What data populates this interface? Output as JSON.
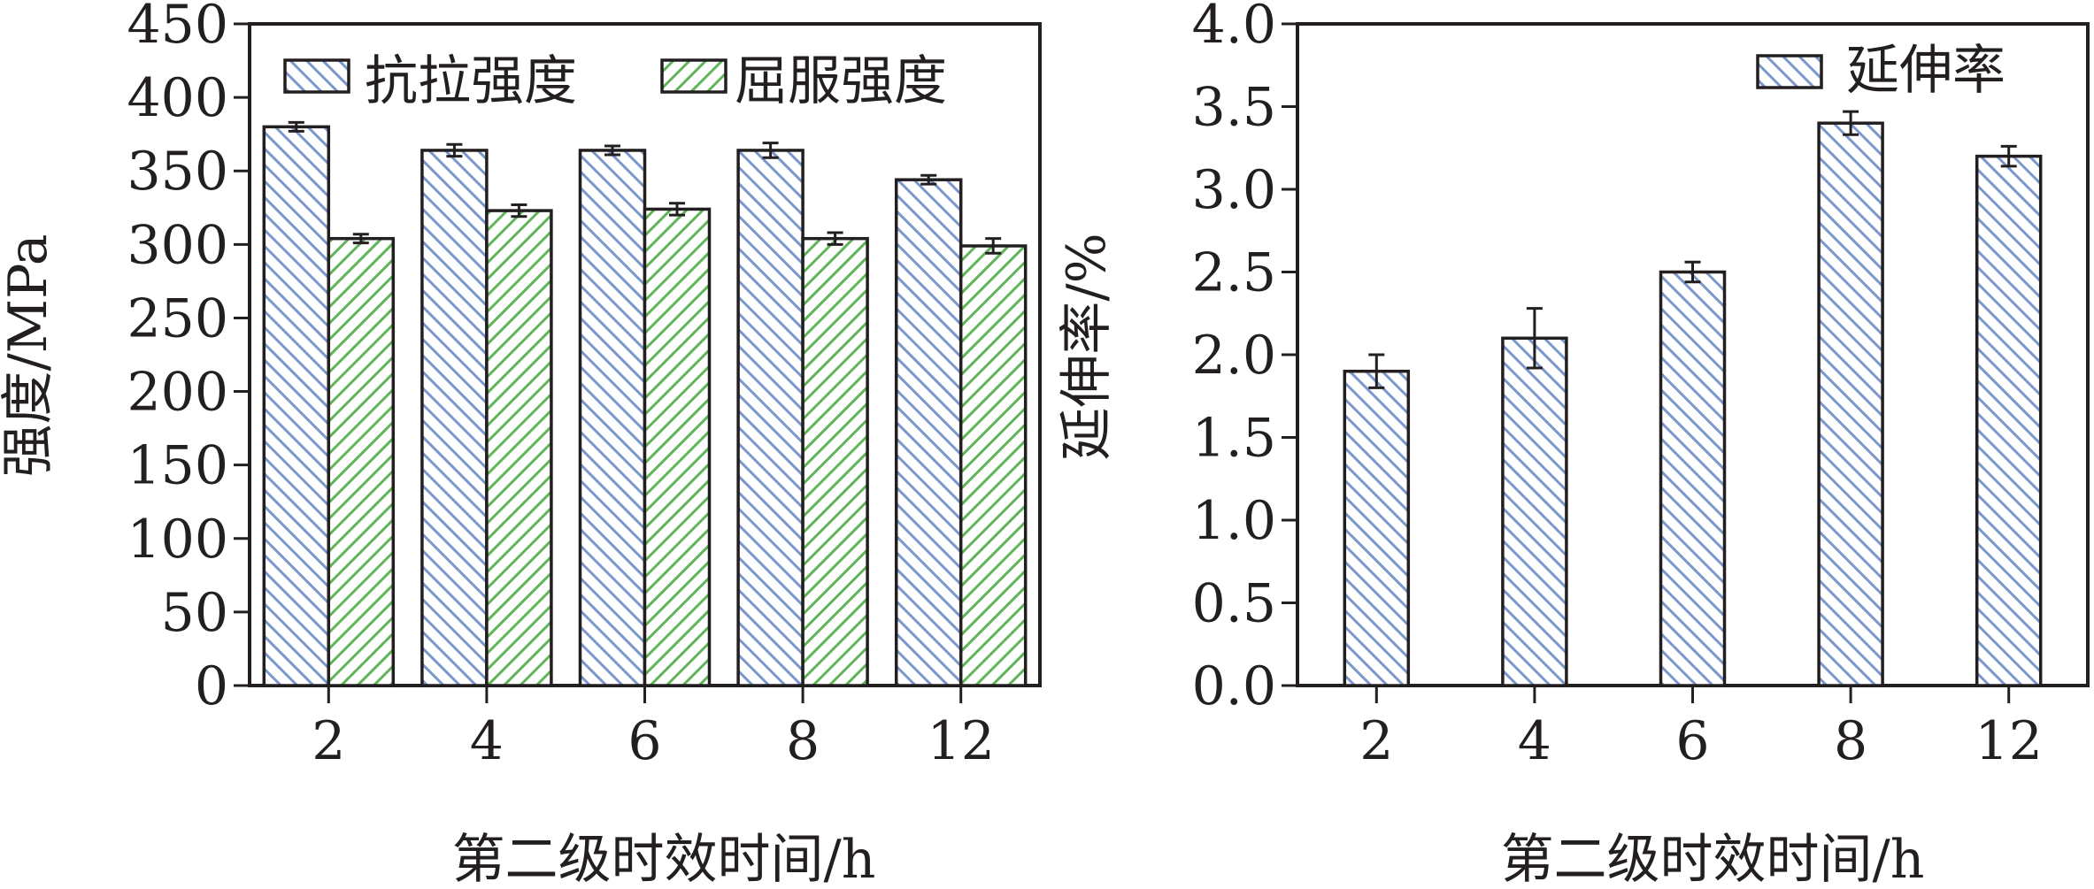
{
  "chart_data": [
    {
      "type": "bar",
      "xlabel": "第二级时效时间/h",
      "ylabel": "强度/MPa",
      "categories": [
        "2",
        "4",
        "6",
        "8",
        "12"
      ],
      "ylim": [
        0,
        450
      ],
      "yticks": [
        "0",
        "50",
        "100",
        "150",
        "200",
        "250",
        "300",
        "350",
        "400",
        "450"
      ],
      "legend_position": "top",
      "series": [
        {
          "name": "抗拉强度",
          "values": [
            380,
            364,
            364,
            364,
            344
          ],
          "errors": [
            3,
            4,
            3,
            5,
            3
          ],
          "color": "#7a98cc",
          "hatch": "diagonal-down"
        },
        {
          "name": "屈服强度",
          "values": [
            304,
            323,
            324,
            304,
            299
          ],
          "errors": [
            3,
            4,
            4,
            4,
            5
          ],
          "color": "#5fb557",
          "hatch": "diagonal-up"
        }
      ]
    },
    {
      "type": "bar",
      "xlabel": "第二级时效时间/h",
      "ylabel": "延伸率/%",
      "categories": [
        "2",
        "4",
        "6",
        "8",
        "12"
      ],
      "ylim": [
        0,
        4.0
      ],
      "yticks": [
        "0.0",
        "0.5",
        "1.0",
        "1.5",
        "2.0",
        "2.5",
        "3.0",
        "3.5",
        "4.0"
      ],
      "legend_position": "top-right",
      "series": [
        {
          "name": "延伸率",
          "values": [
            1.9,
            2.1,
            2.5,
            3.4,
            3.2
          ],
          "errors": [
            0.1,
            0.18,
            0.06,
            0.07,
            0.06
          ],
          "color": "#7a98cc",
          "hatch": "diagonal-down"
        }
      ]
    }
  ]
}
